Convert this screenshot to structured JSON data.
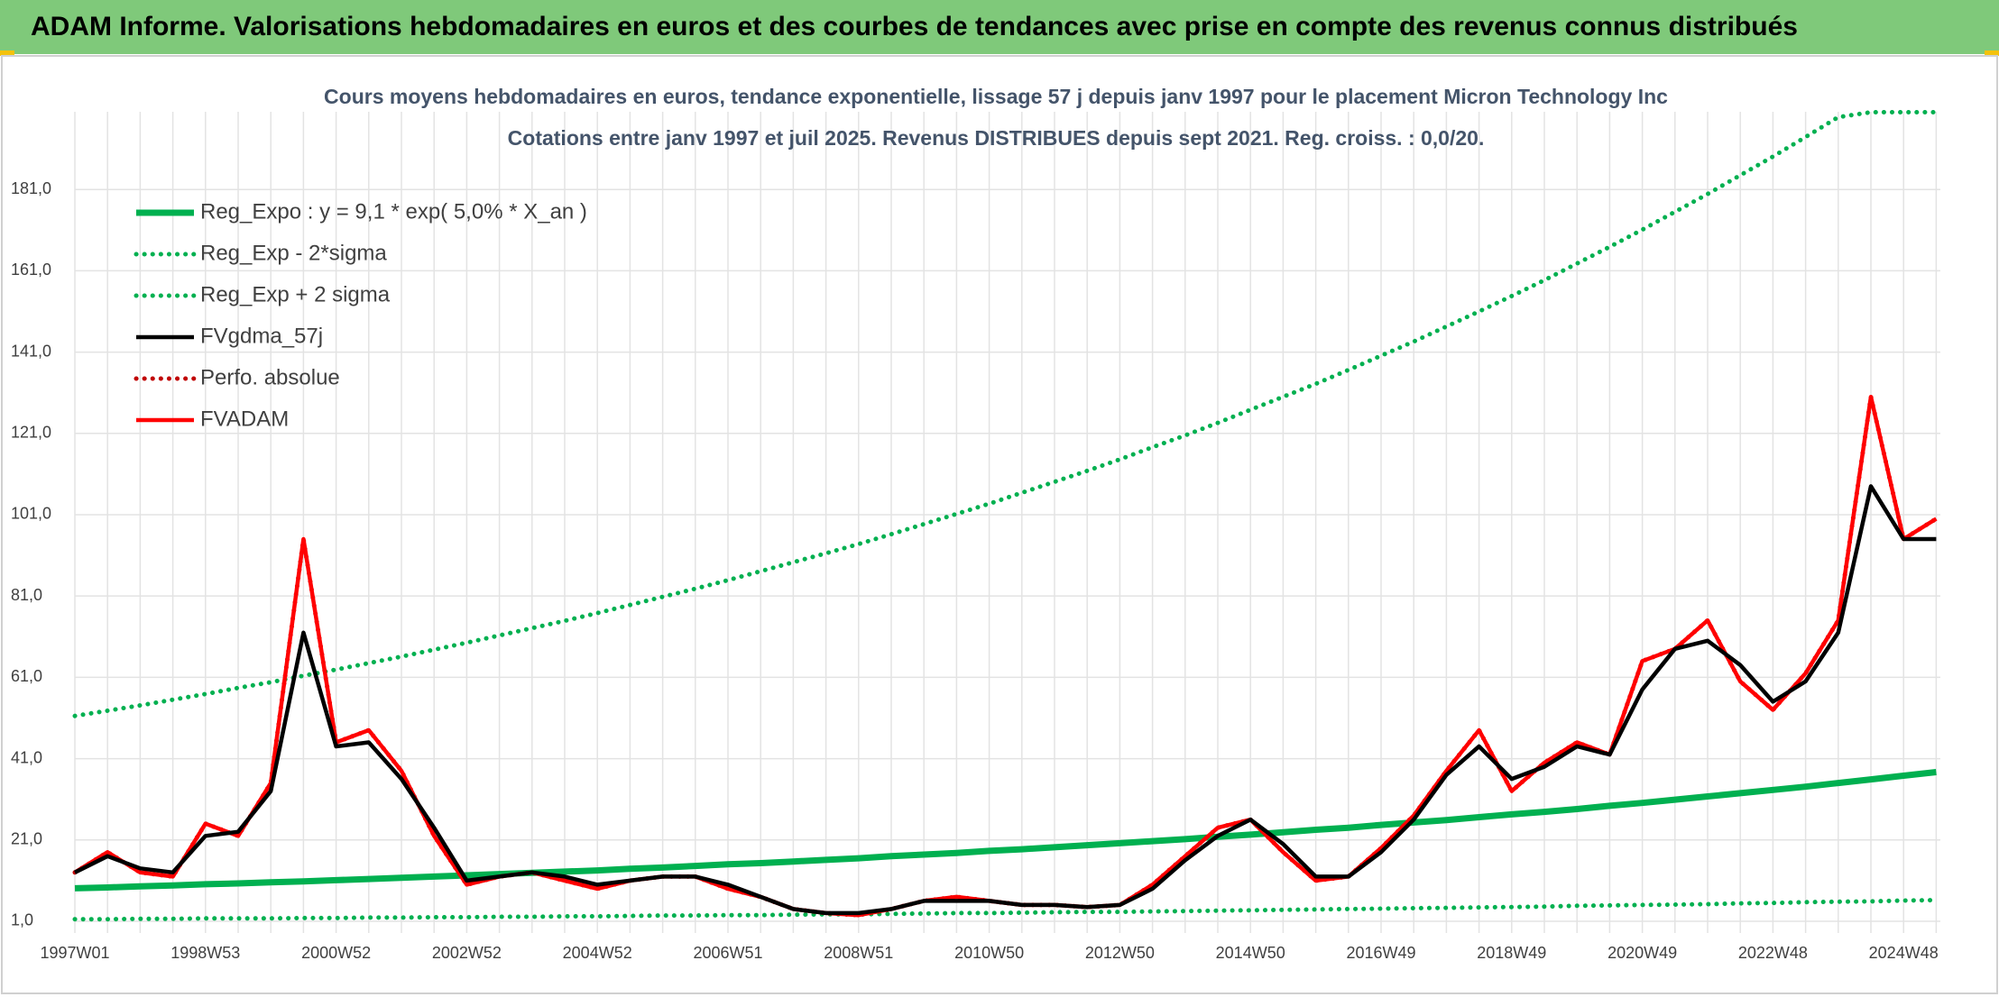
{
  "header": {
    "title": "ADAM Informe. Valorisations hebdomadaires en euros et des courbes de tendances avec prise en compte des revenus connus distribués"
  },
  "chart_data": {
    "type": "line",
    "title": "Cours moyens hebdomadaires en euros, tendance exponentielle, lissage 57 j depuis janv 1997 pour le placement Micron Technology Inc",
    "subtitle": "Cotations entre janv 1997 et juil 2025. Revenus DISTRIBUES depuis sept 2021. Reg. croiss. : 0,0/20.",
    "categories": [
      "1997W01",
      null,
      null,
      null,
      "1998W53",
      null,
      null,
      null,
      "2000W52",
      null,
      null,
      null,
      "2002W52",
      null,
      null,
      null,
      "2004W52",
      null,
      null,
      null,
      "2006W51",
      null,
      null,
      null,
      "2008W51",
      null,
      null,
      null,
      "2010W50",
      null,
      null,
      null,
      "2012W50",
      null,
      null,
      null,
      "2014W50",
      null,
      null,
      null,
      "2016W49",
      null,
      null,
      null,
      "2018W49",
      null,
      null,
      null,
      "2020W49",
      null,
      null,
      null,
      "2022W48",
      null,
      null,
      null,
      "2024W48",
      null
    ],
    "ylim": [
      -3,
      201
    ],
    "yticks": [
      {
        "value": 1,
        "label": "1,0"
      },
      {
        "value": 21,
        "label": "21,0"
      },
      {
        "value": 41,
        "label": "41,0"
      },
      {
        "value": 61,
        "label": "61,0"
      },
      {
        "value": 81,
        "label": "81,0"
      },
      {
        "value": 101,
        "label": "101,0"
      },
      {
        "value": 121,
        "label": "121,0"
      },
      {
        "value": 141,
        "label": "141,0"
      },
      {
        "value": 161,
        "label": "161,0"
      },
      {
        "value": 181,
        "label": "181,0"
      }
    ],
    "grid": true,
    "legend": "upper left",
    "series": [
      {
        "name": "Reg_Expo : y = 9,1 * exp( 5,0% *  X_an )",
        "color": "#00b050",
        "style": "solid",
        "values": [
          9.1,
          9.3,
          9.6,
          9.8,
          10.1,
          10.3,
          10.6,
          10.8,
          11.1,
          11.4,
          11.7,
          12.0,
          12.3,
          12.6,
          12.9,
          13.2,
          13.5,
          13.9,
          14.2,
          14.6,
          15.0,
          15.3,
          15.7,
          16.1,
          16.5,
          17.0,
          17.4,
          17.8,
          18.3,
          18.7,
          19.2,
          19.7,
          20.2,
          20.7,
          21.2,
          21.8,
          22.3,
          22.9,
          23.5,
          24.0,
          24.7,
          25.3,
          25.9,
          26.6,
          27.3,
          27.9,
          28.6,
          29.4,
          30.1,
          30.9,
          31.7,
          32.5,
          33.3,
          34.1,
          35.0,
          35.9,
          36.8,
          37.7
        ]
      },
      {
        "name": "Reg_Exp - 2*sigma",
        "color": "#00b050",
        "style": "dotted",
        "values": [
          1.5,
          1.5,
          1.6,
          1.6,
          1.7,
          1.7,
          1.7,
          1.8,
          1.8,
          1.9,
          1.9,
          2.0,
          2.0,
          2.1,
          2.1,
          2.2,
          2.2,
          2.3,
          2.4,
          2.4,
          2.5,
          2.5,
          2.6,
          2.7,
          2.7,
          2.8,
          2.9,
          3.0,
          3.0,
          3.1,
          3.2,
          3.3,
          3.3,
          3.4,
          3.5,
          3.6,
          3.7,
          3.8,
          3.9,
          4.0,
          4.1,
          4.2,
          4.3,
          4.4,
          4.5,
          4.6,
          4.8,
          4.9,
          5.0,
          5.1,
          5.2,
          5.4,
          5.5,
          5.7,
          5.8,
          5.9,
          6.1,
          6.2
        ]
      },
      {
        "name": "Reg_Exp + 2 sigma",
        "color": "#00b050",
        "style": "dotted",
        "values": [
          51.5,
          52.8,
          54.1,
          55.5,
          56.9,
          58.4,
          59.8,
          61.4,
          62.9,
          64.5,
          66.1,
          67.8,
          69.5,
          71.3,
          73.1,
          74.9,
          76.8,
          78.8,
          80.8,
          82.8,
          84.9,
          87.1,
          89.3,
          91.5,
          93.8,
          96.2,
          98.7,
          101.2,
          103.7,
          106.4,
          109.1,
          111.8,
          114.6,
          117.6,
          120.5,
          123.6,
          126.8,
          130.0,
          133.2,
          136.6,
          140.1,
          143.6,
          147.3,
          151.0,
          154.8,
          158.7,
          162.8,
          166.9,
          171.1,
          175.5,
          179.9,
          184.5,
          189.1,
          193.9,
          198.8,
          200,
          200,
          200
        ]
      },
      {
        "name": "FVgdma_57j",
        "color": "#000000",
        "style": "solid",
        "values": [
          13,
          17,
          14,
          13,
          22,
          23,
          33,
          72,
          44,
          45,
          36,
          24,
          11,
          12,
          13,
          12,
          10,
          11,
          12,
          12,
          10,
          7,
          4,
          3,
          3,
          4,
          6,
          6,
          6,
          5,
          5,
          4.5,
          5,
          9,
          16,
          22,
          26,
          20,
          12,
          12,
          18,
          26,
          37,
          44,
          36,
          39,
          44,
          42,
          58,
          68,
          70,
          64,
          55,
          60,
          72,
          108,
          95,
          95
        ]
      },
      {
        "name": "Perfo. absolue",
        "color": "#c00000",
        "style": "dotted",
        "values": [
          13,
          18,
          13,
          12,
          25,
          22,
          35,
          95,
          45,
          48,
          38,
          22,
          10,
          12,
          13,
          11,
          9,
          11,
          12,
          12,
          9,
          7,
          4,
          3,
          2.5,
          4,
          6,
          7,
          6,
          5,
          5,
          4.5,
          5,
          10,
          17,
          24,
          26,
          18,
          11,
          12,
          19,
          27,
          38,
          48,
          33,
          40,
          45,
          42,
          65,
          68,
          75,
          60,
          53,
          62,
          75,
          130,
          95,
          100
        ]
      },
      {
        "name": "FVADAM",
        "color": "#ff0000",
        "style": "solid",
        "values": [
          13,
          18,
          13,
          12,
          25,
          22,
          35,
          95,
          45,
          48,
          38,
          22,
          10,
          12,
          13,
          11,
          9,
          11,
          12,
          12,
          9,
          7,
          4,
          3,
          2.5,
          4,
          6,
          7,
          6,
          5,
          5,
          4.5,
          5,
          10,
          17,
          24,
          26,
          18,
          11,
          12,
          19,
          27,
          38,
          48,
          33,
          40,
          45,
          42,
          65,
          68,
          75,
          60,
          53,
          62,
          75,
          130,
          95,
          100
        ]
      }
    ]
  }
}
